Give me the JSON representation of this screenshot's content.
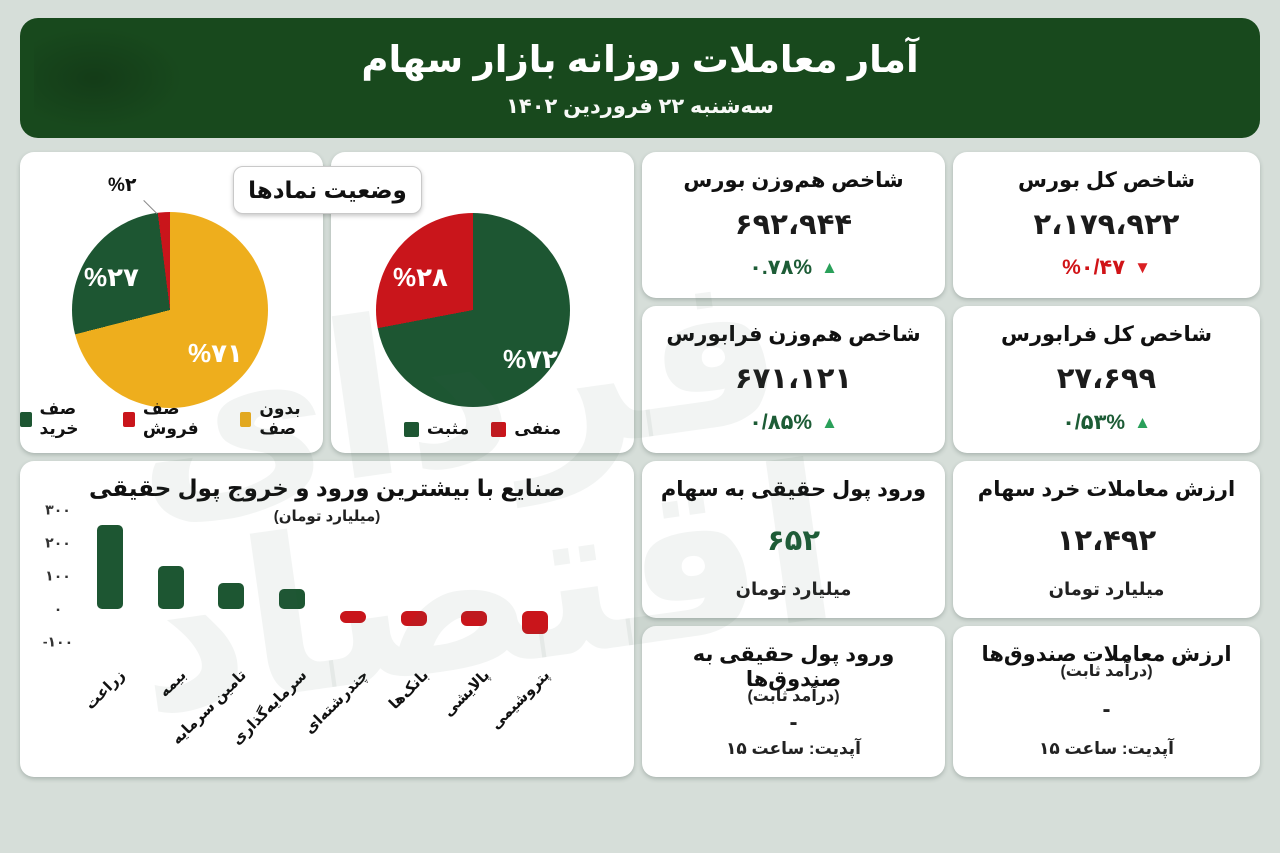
{
  "header": {
    "title": "آمار معاملات روزانه بازار سهام",
    "date": "سه‌شنبه ۲۲ فروردین ۱۴۰۲"
  },
  "watermark": {
    "text_top": "فردای",
    "text_bottom": "اقتصاد"
  },
  "colors": {
    "background": "#d6ded9",
    "header_green": "#18491d",
    "dark_green": "#1d5632",
    "red": "#c9151b",
    "yellow": "#eeae1d",
    "up_green": "#2aa05a",
    "down_red": "#d01317"
  },
  "cards": [
    {
      "id": "total-bourse-index",
      "title": "شاخص کل بورس",
      "value": "۲،۱۷۹،۹۲۲",
      "change": "%۰/۴۷",
      "arrow": "▼",
      "trend": "down"
    },
    {
      "id": "equal-weight-bourse-index",
      "title": "شاخص هم‌وزن بورس",
      "value": "۶۹۲،۹۴۴",
      "change": "۰.۷۸%",
      "arrow": "▲",
      "trend": "up"
    },
    {
      "id": "total-farabourse-index",
      "title": "شاخص کل فرابورس",
      "value": "۲۷،۶۹۹",
      "change": "۰/۵۳%",
      "arrow": "▲",
      "trend": "up"
    },
    {
      "id": "equal-weight-farabourse-index",
      "title": "شاخص هم‌وزن فرابورس",
      "value": "۶۷۱،۱۲۱",
      "change": "۰/۸۵%",
      "arrow": "▲",
      "trend": "up"
    },
    {
      "id": "retail-stock-trades-value",
      "title": "ارزش معاملات خرد سهام",
      "value": "۱۲،۴۹۲",
      "unit": "میلیارد تومان"
    },
    {
      "id": "real-money-inflow-stocks",
      "title": "ورود پول حقیقی به سهام",
      "value": "۶۵۲",
      "unit": "میلیارد تومان"
    },
    {
      "id": "funds-trades-value",
      "title": "ارزش معاملات صندوق‌ها",
      "subtitle": "(درآمد ثابت)",
      "value": "-",
      "footer": "آپدیت: ساعت ۱۵"
    },
    {
      "id": "real-money-inflow-funds",
      "title": "ورود پول حقیقی به صندوق‌ها",
      "subtitle": "(درآمد ثابت)",
      "value": "-",
      "footer": "آپدیت: ساعت ۱۵"
    }
  ],
  "chart_data": [
    {
      "type": "pie",
      "name": "symbols-queue-status",
      "overlay_title": "وضعیت نمادها",
      "slices": [
        {
          "label": "بدون صف",
          "value": 71,
          "display": "%۷۱",
          "color": "#eeae1d"
        },
        {
          "label": "صف خرید",
          "value": 27,
          "display": "%۲۷",
          "color": "#1d5632"
        },
        {
          "label": "صف فروش",
          "value": 2,
          "display": "%۲",
          "color": "#c9151b"
        }
      ],
      "legend": [
        {
          "label": "صف خرید",
          "color": "#1d5632"
        },
        {
          "label": "صف فروش",
          "color": "#c9151b"
        },
        {
          "label": "بدون صف",
          "color": "#eeae1d"
        }
      ]
    },
    {
      "type": "pie",
      "name": "symbols-positive-negative",
      "slices": [
        {
          "label": "مثبت",
          "value": 72,
          "display": "%۷۲",
          "color": "#1d5632"
        },
        {
          "label": "منفی",
          "value": 28,
          "display": "%۲۸",
          "color": "#c9151b"
        }
      ],
      "legend": [
        {
          "label": "مثبت",
          "color": "#1d5632"
        },
        {
          "label": "منفی",
          "color": "#c9151b"
        }
      ]
    },
    {
      "type": "bar",
      "name": "industry-real-money-flow",
      "title": "صنایع با بیشترین ورود و خروج پول حقیقی",
      "subtitle": "(میلیارد تومان)",
      "categories": [
        "زراعت",
        "بیمه",
        "تامین سرمایه",
        "سرمایه‌گذاری",
        "چندرشته‌ای",
        "بانک‌ها",
        "پالایشی",
        "پتروشیمی"
      ],
      "values": [
        255,
        130,
        80,
        60,
        -35,
        -45,
        -45,
        -70
      ],
      "ylim": [
        -100,
        300
      ],
      "yticks": [
        {
          "value": 300,
          "label": "۳۰۰"
        },
        {
          "value": 200,
          "label": "۲۰۰"
        },
        {
          "value": 100,
          "label": "۱۰۰"
        },
        {
          "value": 0,
          "label": "۰"
        },
        {
          "value": -100,
          "label": "-۱۰۰"
        }
      ],
      "positive_color": "#1d5632",
      "negative_color": "#c9151b",
      "grid": false,
      "legend_position": "none"
    }
  ]
}
